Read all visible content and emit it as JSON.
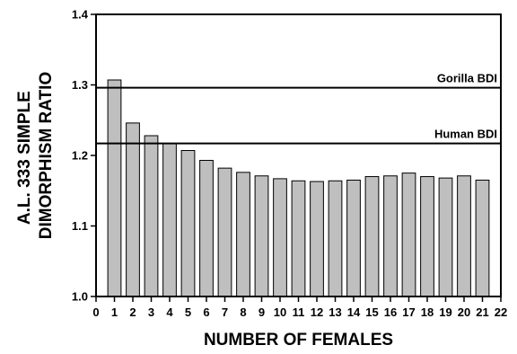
{
  "chart_data": {
    "type": "bar",
    "title": "",
    "xlabel": "NUMBER OF FEMALES",
    "ylabel_lines": [
      "A.L. 333 SIMPLE",
      "DIMORPHISM RATIO"
    ],
    "xlim": [
      0,
      22
    ],
    "ylim": [
      1.0,
      1.4
    ],
    "x_ticks": [
      "0",
      "1",
      "2",
      "3",
      "4",
      "5",
      "6",
      "7",
      "8",
      "9",
      "10",
      "11",
      "12",
      "13",
      "14",
      "15",
      "16",
      "17",
      "18",
      "19",
      "20",
      "21",
      "22"
    ],
    "y_ticks": [
      "1.0",
      "1.1",
      "1.2",
      "1.3",
      "1.4"
    ],
    "categories": [
      1,
      2,
      3,
      4,
      5,
      6,
      7,
      8,
      9,
      10,
      11,
      12,
      13,
      14,
      15,
      16,
      17,
      18,
      19,
      20,
      21
    ],
    "values": [
      1.307,
      1.246,
      1.228,
      1.217,
      1.207,
      1.193,
      1.182,
      1.176,
      1.171,
      1.167,
      1.164,
      1.163,
      1.164,
      1.165,
      1.17,
      1.171,
      1.175,
      1.17,
      1.168,
      1.171,
      1.165
    ],
    "reference_lines": [
      {
        "label": "Gorilla BDI",
        "value": 1.296
      },
      {
        "label": "Human BDI",
        "value": 1.217
      }
    ],
    "grid": false,
    "legend": "none"
  }
}
